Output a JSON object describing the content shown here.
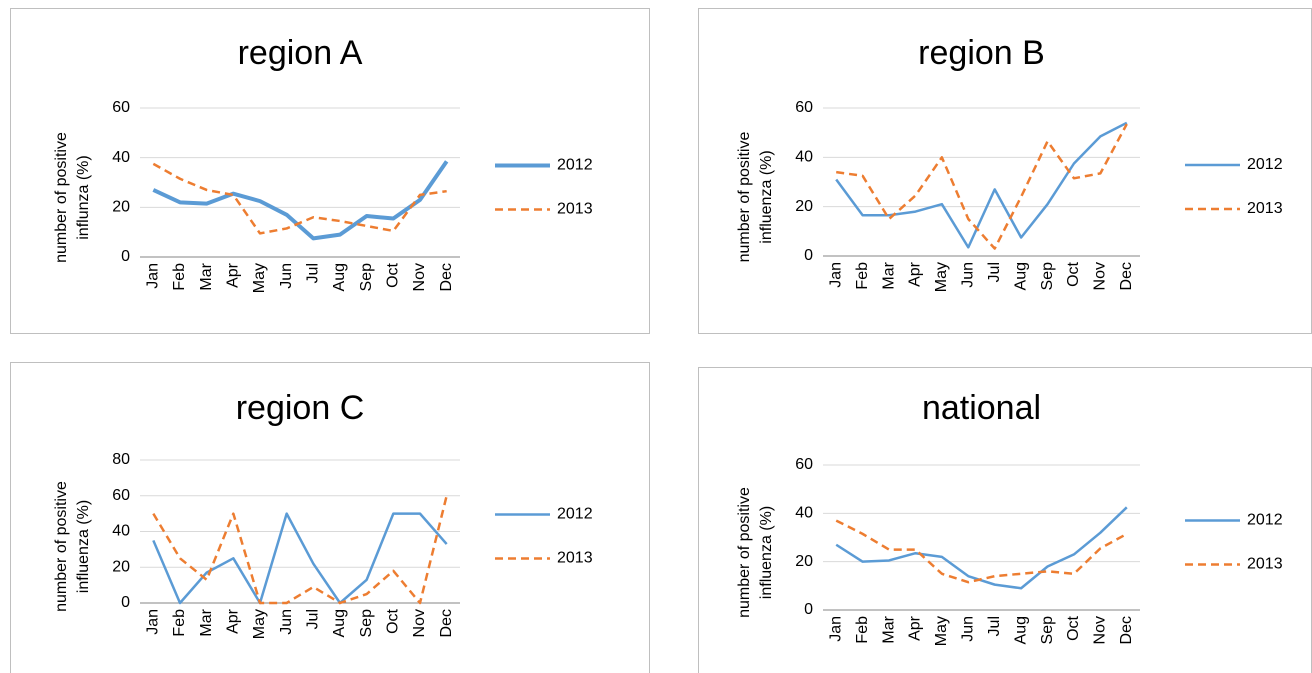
{
  "chart_data": [
    {
      "type": "line",
      "title": "region A",
      "y_label": [
        "number of positive",
        "influnza (%)"
      ],
      "categories": [
        "Jan",
        "Feb",
        "Mar",
        "Apr",
        "May",
        "Jun",
        "Jul",
        "Aug",
        "Sep",
        "Oct",
        "Nov",
        "Dec"
      ],
      "series": [
        {
          "name": "2012",
          "color": "#5b9bd5",
          "style": "solid",
          "width": 4,
          "values": [
            27,
            22,
            21.5,
            25.5,
            22.5,
            17,
            7.5,
            9,
            16.5,
            15.5,
            23,
            38.5
          ]
        },
        {
          "name": "2013",
          "color": "#ed7d31",
          "style": "dashed",
          "width": 2.5,
          "values": [
            37.5,
            31.5,
            27,
            25,
            9.5,
            11.5,
            16,
            14.5,
            12.5,
            10.5,
            25,
            26.5
          ]
        }
      ],
      "ylim": [
        0,
        60
      ],
      "yticks": [
        0,
        20,
        40,
        60
      ],
      "grid": true,
      "legend": "right"
    },
    {
      "type": "line",
      "title": "region B",
      "y_label": [
        "number of positive",
        "influenza (%)"
      ],
      "categories": [
        "Jan",
        "Feb",
        "Mar",
        "Apr",
        "May",
        "Jun",
        "Jul",
        "Aug",
        "Sep",
        "Oct",
        "Nov",
        "Dec"
      ],
      "series": [
        {
          "name": "2012",
          "color": "#5b9bd5",
          "style": "solid",
          "width": 2.5,
          "values": [
            31,
            16.5,
            16.5,
            18,
            21,
            3.5,
            27,
            7.5,
            21,
            37.5,
            48.5,
            54
          ]
        },
        {
          "name": "2013",
          "color": "#ed7d31",
          "style": "dashed",
          "width": 2.5,
          "values": [
            34,
            32.5,
            15,
            24.5,
            40,
            15,
            3,
            24,
            46.5,
            31.5,
            33.5,
            53.5
          ]
        }
      ],
      "ylim": [
        0,
        60
      ],
      "yticks": [
        0,
        20,
        40,
        60
      ],
      "grid": true,
      "legend": "right"
    },
    {
      "type": "line",
      "title": "region C",
      "y_label": [
        "number of positive",
        "influenza (%)"
      ],
      "categories": [
        "Jan",
        "Feb",
        "Mar",
        "Apr",
        "May",
        "Jun",
        "Jul",
        "Aug",
        "Sep",
        "Oct",
        "Nov",
        "Dec"
      ],
      "series": [
        {
          "name": "2012",
          "color": "#5b9bd5",
          "style": "solid",
          "width": 2.5,
          "values": [
            35,
            0,
            17,
            25,
            0,
            50,
            22,
            0,
            13,
            50,
            50,
            33
          ]
        },
        {
          "name": "2013",
          "color": "#ed7d31",
          "style": "dashed",
          "width": 2.5,
          "values": [
            50,
            25,
            13,
            50,
            0,
            0,
            9,
            0,
            5,
            18,
            0,
            60
          ]
        }
      ],
      "ylim": [
        0,
        80
      ],
      "yticks": [
        0,
        20,
        40,
        60,
        80
      ],
      "grid": true,
      "legend": "right"
    },
    {
      "type": "line",
      "title": "national",
      "y_label": [
        "number of positive",
        "influenza (%)"
      ],
      "categories": [
        "Jan",
        "Feb",
        "Mar",
        "Apr",
        "May",
        "Jun",
        "Jul",
        "Aug",
        "Sep",
        "Oct",
        "Nov",
        "Dec"
      ],
      "series": [
        {
          "name": "2012",
          "color": "#5b9bd5",
          "style": "solid",
          "width": 2.5,
          "values": [
            27,
            20,
            20.5,
            23.5,
            22,
            14,
            10.5,
            9,
            18,
            23,
            32,
            42.5
          ]
        },
        {
          "name": "2013",
          "color": "#ed7d31",
          "style": "dashed",
          "width": 2.5,
          "values": [
            37,
            31.5,
            25,
            25,
            15,
            11.5,
            14,
            15,
            16,
            15,
            25.5,
            31.5
          ]
        }
      ],
      "ylim": [
        0,
        60
      ],
      "yticks": [
        0,
        20,
        40,
        60
      ],
      "grid": true,
      "legend": "right"
    }
  ]
}
